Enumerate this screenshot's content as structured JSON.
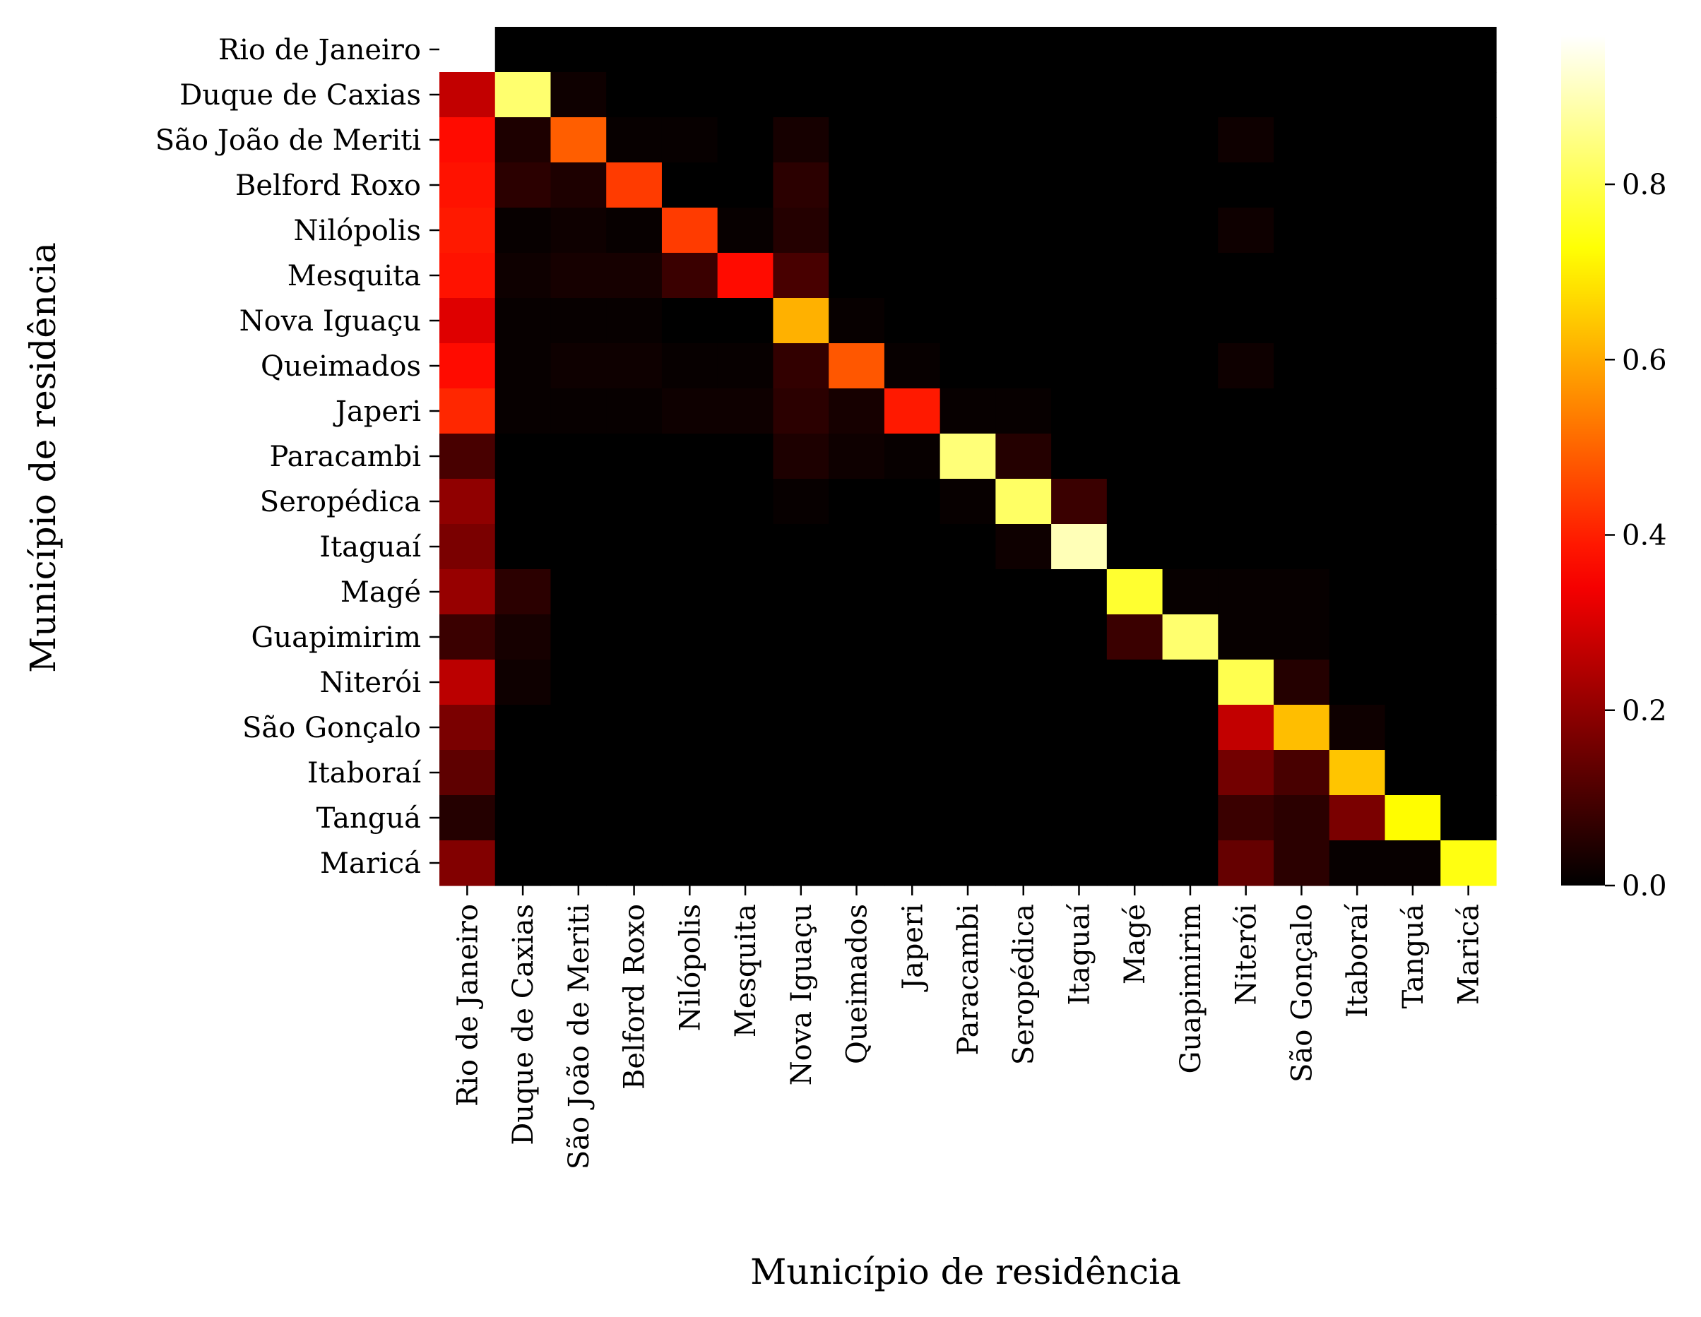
{
  "chart_data": {
    "type": "heatmap",
    "title": "",
    "xlabel": "Município de residência",
    "ylabel": "Município de residência",
    "colormap": "hot",
    "categories": [
      "Rio de Janeiro",
      "Duque de Caxias",
      "São João de Meriti",
      "Belford Roxo",
      "Nilópolis",
      "Mesquita",
      "Nova Iguaçu",
      "Queimados",
      "Japeri",
      "Paracambi",
      "Seropédica",
      "Itaguaí",
      "Magé",
      "Guapimirim",
      "Niterói",
      "São Gonçalo",
      "Itaboraí",
      "Tanguá",
      "Maricá"
    ],
    "values": [
      [
        null,
        0.0,
        0.0,
        0.0,
        0.0,
        0.0,
        0.0,
        0.0,
        0.0,
        0.0,
        0.0,
        0.0,
        0.0,
        0.0,
        0.0,
        0.0,
        0.0,
        0.0,
        0.0
      ],
      [
        0.27,
        0.83,
        0.02,
        0.0,
        0.0,
        0.0,
        0.0,
        0.0,
        0.0,
        0.0,
        0.0,
        0.0,
        0.0,
        0.0,
        0.0,
        0.0,
        0.0,
        0.0,
        0.0
      ],
      [
        0.37,
        0.04,
        0.49,
        0.01,
        0.01,
        0.0,
        0.03,
        0.0,
        0.0,
        0.0,
        0.0,
        0.0,
        0.0,
        0.0,
        0.02,
        0.0,
        0.0,
        0.0,
        0.0
      ],
      [
        0.38,
        0.06,
        0.04,
        0.44,
        0.0,
        0.0,
        0.06,
        0.0,
        0.0,
        0.0,
        0.0,
        0.0,
        0.0,
        0.0,
        0.0,
        0.0,
        0.0,
        0.0,
        0.0
      ],
      [
        0.39,
        0.01,
        0.02,
        0.01,
        0.44,
        0.01,
        0.05,
        0.0,
        0.0,
        0.0,
        0.0,
        0.0,
        0.0,
        0.0,
        0.02,
        0.0,
        0.0,
        0.0,
        0.0
      ],
      [
        0.38,
        0.02,
        0.03,
        0.03,
        0.08,
        0.37,
        0.1,
        0.0,
        0.0,
        0.0,
        0.0,
        0.0,
        0.0,
        0.0,
        0.0,
        0.0,
        0.0,
        0.0,
        0.0
      ],
      [
        0.31,
        0.01,
        0.01,
        0.01,
        0.0,
        0.0,
        0.61,
        0.01,
        0.0,
        0.0,
        0.0,
        0.0,
        0.0,
        0.0,
        0.0,
        0.0,
        0.0,
        0.0,
        0.0
      ],
      [
        0.37,
        0.01,
        0.02,
        0.02,
        0.01,
        0.01,
        0.07,
        0.48,
        0.01,
        0.0,
        0.0,
        0.0,
        0.0,
        0.0,
        0.02,
        0.0,
        0.0,
        0.0,
        0.0
      ],
      [
        0.41,
        0.01,
        0.01,
        0.01,
        0.02,
        0.02,
        0.06,
        0.03,
        0.39,
        0.01,
        0.01,
        0.0,
        0.0,
        0.0,
        0.0,
        0.0,
        0.0,
        0.0,
        0.0
      ],
      [
        0.1,
        0.0,
        0.0,
        0.0,
        0.0,
        0.0,
        0.04,
        0.02,
        0.01,
        0.84,
        0.05,
        0.0,
        0.0,
        0.0,
        0.0,
        0.0,
        0.0,
        0.0,
        0.0
      ],
      [
        0.2,
        0.0,
        0.0,
        0.0,
        0.0,
        0.0,
        0.01,
        0.0,
        0.0,
        0.01,
        0.82,
        0.08,
        0.0,
        0.0,
        0.0,
        0.0,
        0.0,
        0.0,
        0.0
      ],
      [
        0.17,
        0.0,
        0.0,
        0.0,
        0.0,
        0.0,
        0.0,
        0.0,
        0.0,
        0.0,
        0.02,
        0.9,
        0.0,
        0.0,
        0.0,
        0.0,
        0.0,
        0.0,
        0.0
      ],
      [
        0.21,
        0.06,
        0.0,
        0.0,
        0.0,
        0.0,
        0.0,
        0.0,
        0.0,
        0.0,
        0.0,
        0.0,
        0.77,
        0.01,
        0.01,
        0.01,
        0.0,
        0.0,
        0.0
      ],
      [
        0.08,
        0.03,
        0.0,
        0.0,
        0.0,
        0.0,
        0.0,
        0.0,
        0.0,
        0.0,
        0.0,
        0.0,
        0.08,
        0.83,
        0.01,
        0.01,
        0.0,
        0.0,
        0.0
      ],
      [
        0.26,
        0.02,
        0.0,
        0.0,
        0.0,
        0.0,
        0.0,
        0.0,
        0.0,
        0.0,
        0.0,
        0.0,
        0.0,
        0.0,
        0.8,
        0.05,
        0.0,
        0.0,
        0.0
      ],
      [
        0.17,
        0.0,
        0.0,
        0.0,
        0.0,
        0.0,
        0.0,
        0.0,
        0.0,
        0.0,
        0.0,
        0.0,
        0.0,
        0.0,
        0.27,
        0.63,
        0.02,
        0.0,
        0.0
      ],
      [
        0.13,
        0.0,
        0.0,
        0.0,
        0.0,
        0.0,
        0.0,
        0.0,
        0.0,
        0.0,
        0.0,
        0.0,
        0.0,
        0.0,
        0.16,
        0.1,
        0.64,
        0.0,
        0.0
      ],
      [
        0.05,
        0.0,
        0.0,
        0.0,
        0.0,
        0.0,
        0.0,
        0.0,
        0.0,
        0.0,
        0.0,
        0.0,
        0.0,
        0.0,
        0.08,
        0.06,
        0.17,
        0.72,
        0.0
      ],
      [
        0.18,
        0.0,
        0.0,
        0.0,
        0.0,
        0.0,
        0.0,
        0.0,
        0.0,
        0.0,
        0.0,
        0.0,
        0.0,
        0.0,
        0.14,
        0.06,
        0.01,
        0.01,
        0.74
      ]
    ],
    "colorbar": {
      "range": [
        0.0,
        0.97
      ],
      "ticks": [
        0.0,
        0.2,
        0.4,
        0.6,
        0.8
      ],
      "tick_labels": [
        "0.0",
        "0.2",
        "0.4",
        "0.6",
        "0.8"
      ]
    },
    "grid": false,
    "legend": "colorbar-right"
  }
}
